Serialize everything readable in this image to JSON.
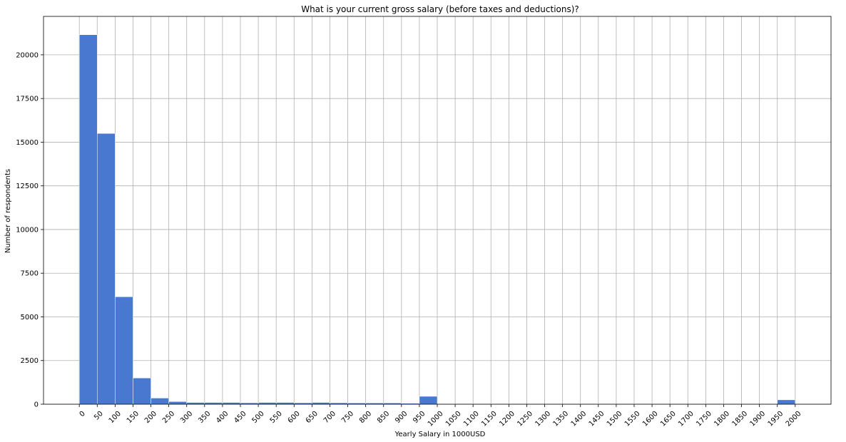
{
  "chart_data": {
    "type": "bar",
    "title": "What is your current gross salary (before taxes and deductions)?",
    "xlabel": "Yearly Salary in 1000USD",
    "ylabel": "Number of respondents",
    "bin_width": 50,
    "bin_starts": [
      0,
      50,
      100,
      150,
      200,
      250,
      300,
      350,
      400,
      450,
      500,
      550,
      600,
      650,
      700,
      750,
      800,
      850,
      900,
      950,
      1000,
      1050,
      1100,
      1150,
      1200,
      1250,
      1300,
      1350,
      1400,
      1450,
      1500,
      1550,
      1600,
      1650,
      1700,
      1750,
      1800,
      1850,
      1900,
      1950
    ],
    "values": [
      21150,
      15500,
      6150,
      1500,
      350,
      150,
      100,
      100,
      100,
      80,
      100,
      100,
      80,
      100,
      80,
      70,
      70,
      70,
      50,
      450,
      0,
      30,
      0,
      30,
      0,
      0,
      0,
      0,
      30,
      30,
      0,
      30,
      0,
      0,
      0,
      30,
      0,
      0,
      0,
      250
    ],
    "x_ticks": [
      0,
      50,
      100,
      150,
      200,
      250,
      300,
      350,
      400,
      450,
      500,
      550,
      600,
      650,
      700,
      750,
      800,
      850,
      900,
      950,
      1000,
      1050,
      1100,
      1150,
      1200,
      1250,
      1300,
      1350,
      1400,
      1450,
      1500,
      1550,
      1600,
      1650,
      1700,
      1750,
      1800,
      1850,
      1900,
      1950,
      2000
    ],
    "y_ticks": [
      0,
      2500,
      5000,
      7500,
      10000,
      12500,
      15000,
      17500,
      20000
    ],
    "xlim": [
      -100,
      2100
    ],
    "ylim": [
      0,
      22200
    ],
    "grid": true,
    "colors": {
      "bar": "#4878d0",
      "grid": "#b0b0b0",
      "axis": "#000000"
    }
  }
}
